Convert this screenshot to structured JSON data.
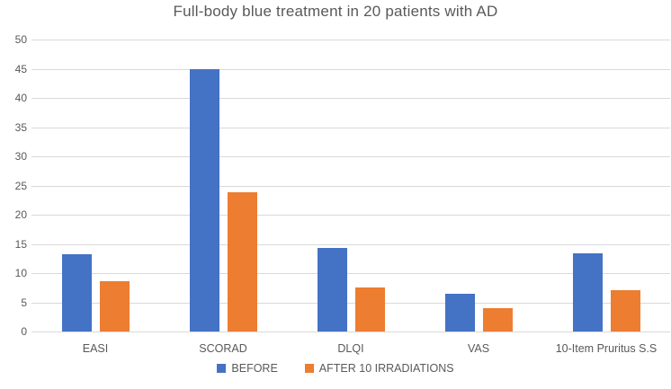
{
  "chart_data": {
    "type": "bar",
    "title": "Full-body blue treatment in 20 patients with AD",
    "categories": [
      "EASI",
      "SCORAD",
      "DLQI",
      "VAS",
      "10-Item Pruritus S.S"
    ],
    "series": [
      {
        "name": "BEFORE",
        "color": "#4472C4",
        "values": [
          13.2,
          45,
          14.3,
          6.5,
          13.4
        ]
      },
      {
        "name": "AFTER 10 IRRADIATIONS",
        "color": "#ED7D31",
        "values": [
          8.6,
          23.8,
          7.5,
          4,
          7.1
        ]
      }
    ],
    "xlabel": "",
    "ylabel": "",
    "ylim": [
      0,
      50
    ],
    "ytick_step": 5,
    "ytick_labels": [
      "0",
      "5",
      "10",
      "15",
      "20",
      "25",
      "30",
      "35",
      "40",
      "45",
      "50"
    ],
    "grid": true,
    "legend_position": "bottom",
    "colors": {
      "before_bar": "#4472C4",
      "after_bar": "#ED7D31",
      "gridline": "#D9D9D9",
      "axis_text": "#595959",
      "title_text": "#595959",
      "background": "#FFFFFF"
    }
  }
}
